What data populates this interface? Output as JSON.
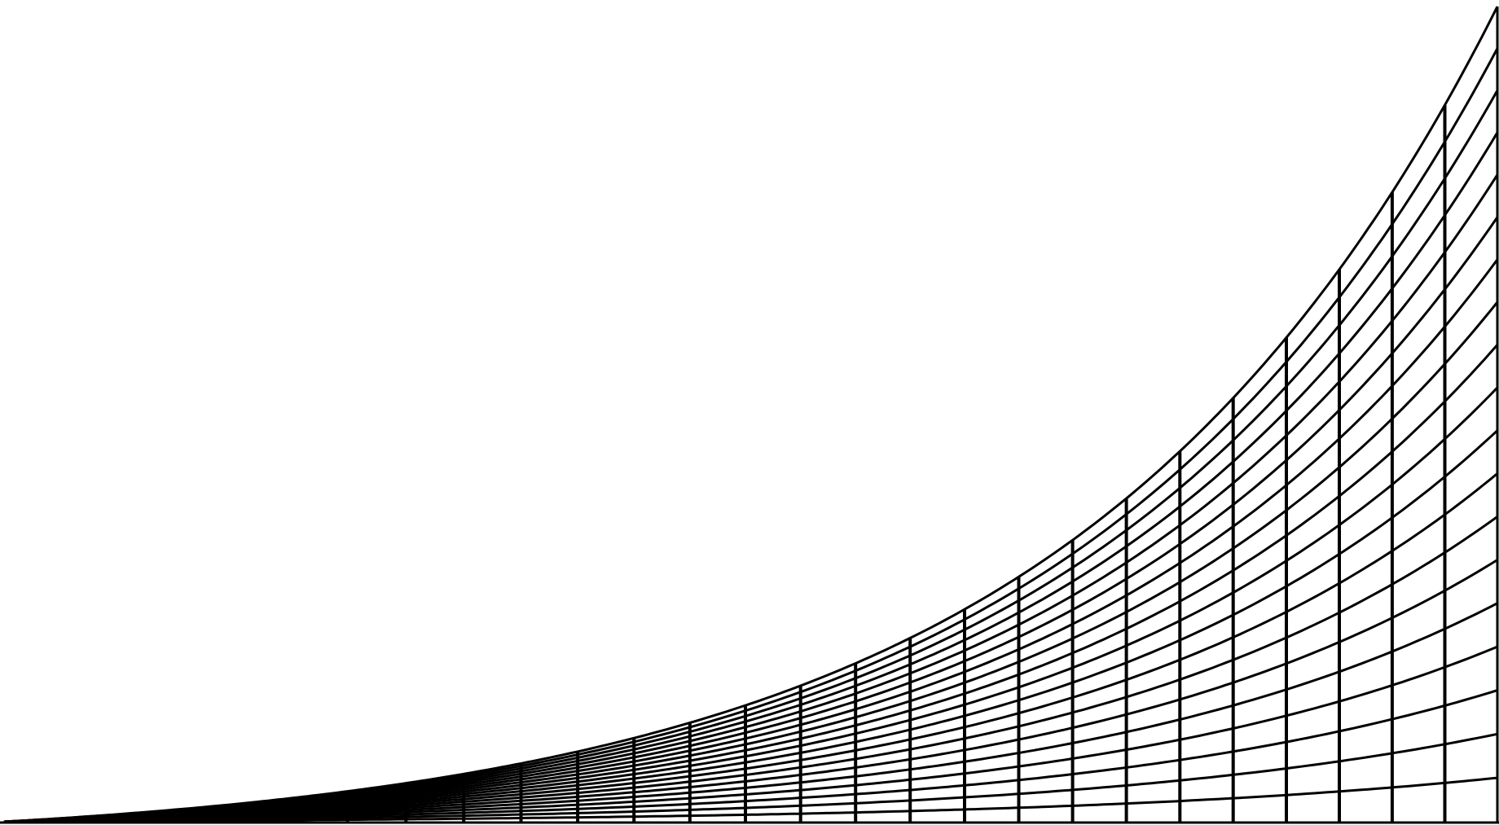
{
  "diagram": {
    "type": "curvilinear-grid",
    "description_visible_text": "",
    "stroke_color": "#000000",
    "background_color": "#ffffff",
    "vertical_line_count": 27,
    "contour_line_count": 18,
    "outer_curve_count": 1,
    "baseline_count": 1
  }
}
